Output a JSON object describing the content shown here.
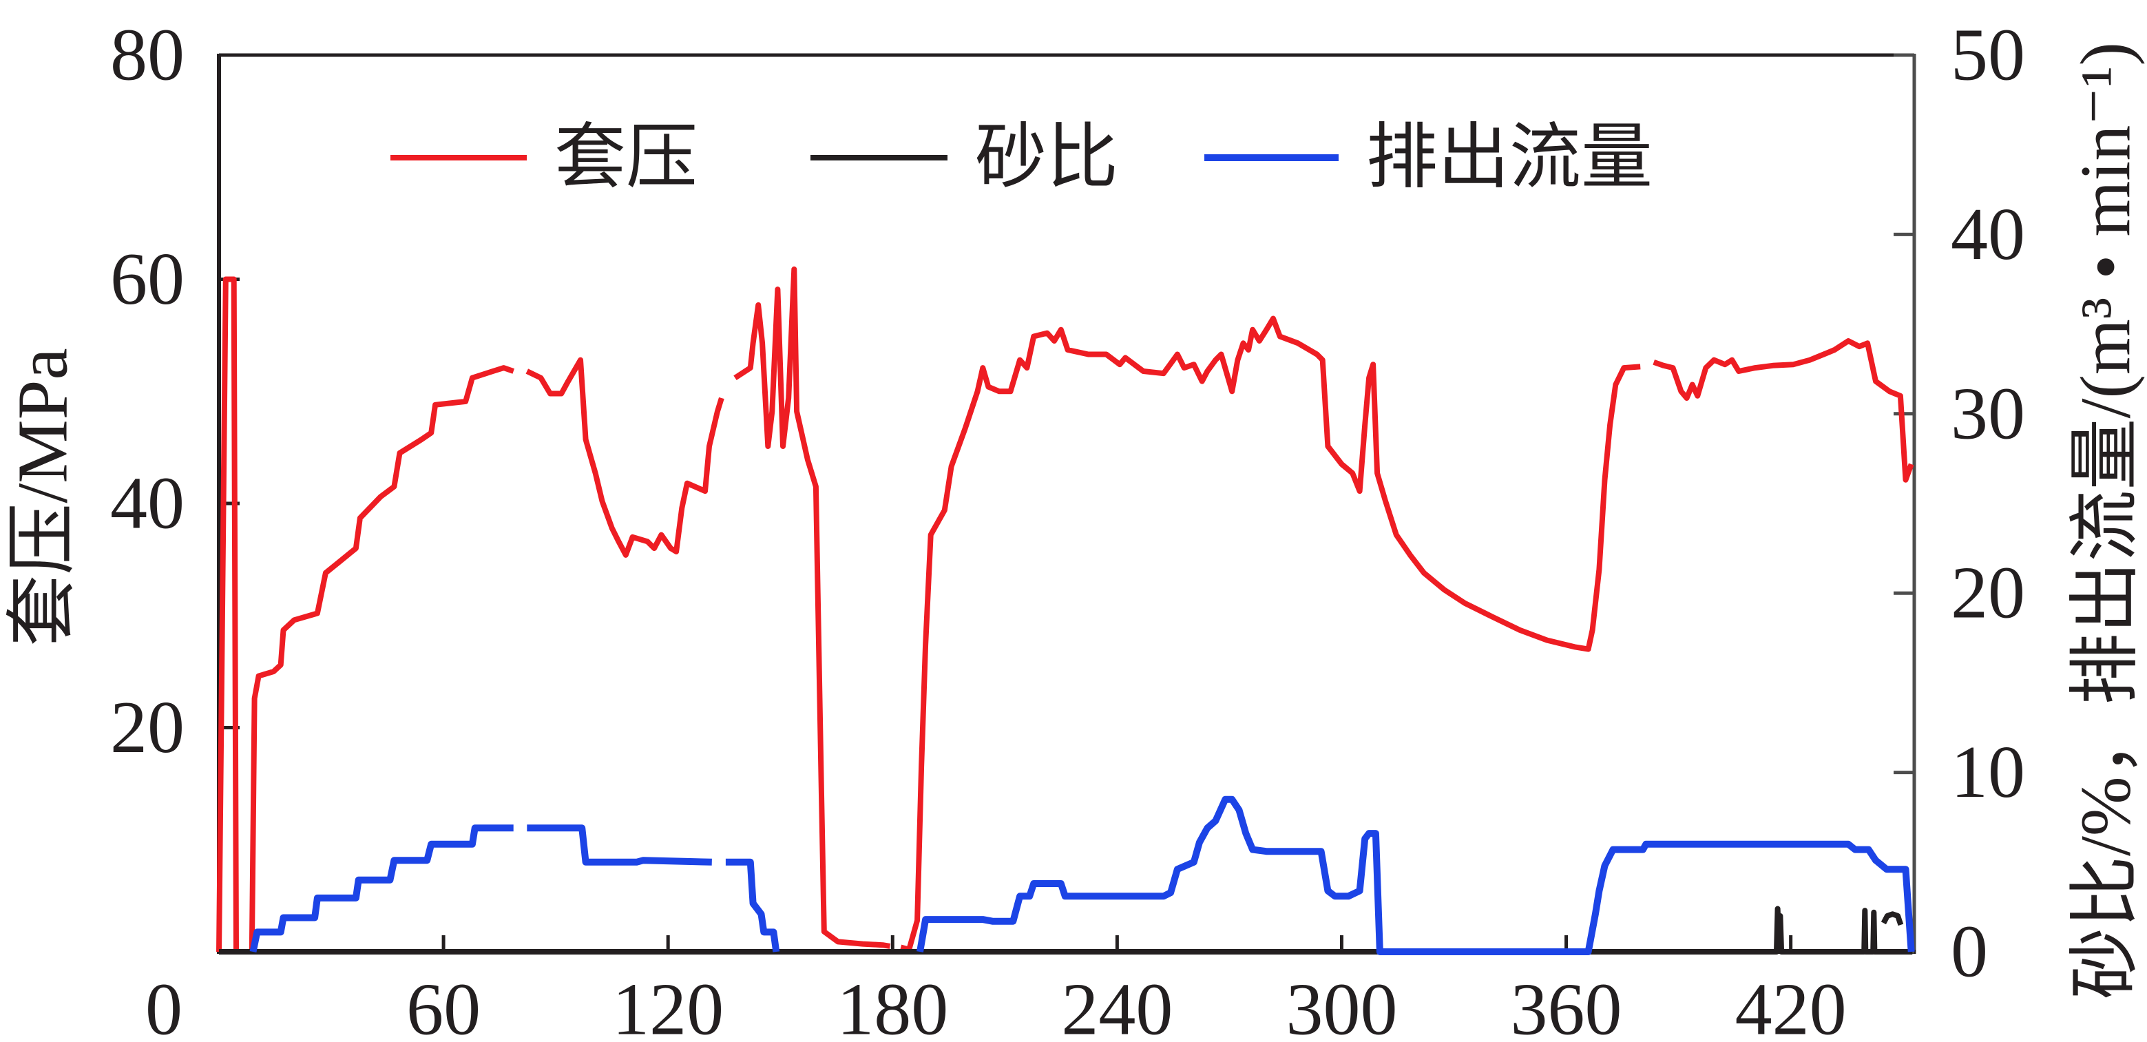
{
  "chart_data": {
    "type": "line",
    "grid": false,
    "legend": "top",
    "x": {
      "range": [
        0,
        453
      ],
      "ticks": [
        0,
        60,
        120,
        180,
        240,
        300,
        360,
        420
      ]
    },
    "y_left": {
      "label": "套压/MPa",
      "range": [
        0,
        80
      ],
      "ticks": [
        20,
        40,
        60,
        80
      ]
    },
    "y_right": {
      "label": "砂比/%，排出流量/(m³ • min⁻¹)",
      "range": [
        0,
        50
      ],
      "ticks": [
        0,
        10,
        20,
        30,
        40,
        50
      ]
    },
    "series": [
      {
        "name": "套压",
        "color": "#ee1d23",
        "y_axis": "left",
        "points": [
          [
            0,
            0
          ],
          [
            1.8,
            60
          ],
          [
            4.0,
            60
          ],
          [
            4.6,
            0
          ],
          [
            8.8,
            0
          ],
          [
            9.5,
            22.6
          ],
          [
            10.6,
            24.6
          ],
          [
            14.6,
            25.0
          ],
          [
            16.5,
            25.6
          ],
          [
            17.2,
            28.7
          ],
          [
            20.1,
            29.6
          ],
          [
            26.3,
            30.2
          ],
          [
            28.5,
            33.8
          ],
          [
            32.2,
            34.8
          ],
          [
            36.6,
            36.0
          ],
          [
            37.7,
            38.7
          ],
          [
            43.2,
            40.6
          ],
          [
            46.8,
            41.5
          ],
          [
            48.3,
            44.5
          ],
          [
            54.1,
            45.7
          ],
          [
            56.7,
            46.3
          ],
          [
            57.8,
            48.8
          ],
          [
            65.9,
            49.1
          ],
          [
            67.7,
            51.2
          ],
          [
            73.2,
            51.8
          ],
          [
            76.1,
            52.1
          ],
          [
            78.7,
            51.8
          ],
          null,
          [
            82.3,
            51.8
          ],
          [
            86.0,
            51.2
          ],
          [
            88.5,
            49.8
          ],
          [
            91.5,
            49.8
          ],
          [
            93.3,
            50.9
          ],
          [
            96.6,
            52.8
          ],
          [
            98.0,
            45.7
          ],
          [
            100.6,
            42.7
          ],
          [
            102.4,
            40.2
          ],
          [
            105.0,
            37.8
          ],
          [
            106.8,
            36.6
          ],
          [
            108.7,
            35.4
          ],
          [
            110.5,
            37.0
          ],
          [
            114.5,
            36.6
          ],
          [
            116.3,
            36.0
          ],
          [
            118.2,
            37.2
          ],
          [
            120.7,
            36.0
          ],
          [
            122.2,
            35.7
          ],
          [
            123.7,
            39.6
          ],
          [
            125.1,
            41.8
          ],
          [
            129.9,
            41.1
          ],
          [
            131.0,
            45.1
          ],
          [
            133.2,
            48.2
          ],
          [
            134.3,
            49.4
          ],
          null,
          [
            137.9,
            51.2
          ],
          [
            142.0,
            52.1
          ],
          [
            142.7,
            54.3
          ],
          [
            144.1,
            57.7
          ],
          [
            145.2,
            54.3
          ],
          [
            146.7,
            45.1
          ],
          [
            147.8,
            48.2
          ],
          [
            149.3,
            59.1
          ],
          [
            150.7,
            45.1
          ],
          [
            152.2,
            49.4
          ],
          [
            153.7,
            60.9
          ],
          [
            154.4,
            48.2
          ],
          [
            157.3,
            43.9
          ],
          [
            159.5,
            41.5
          ],
          [
            161.0,
            14.0
          ],
          [
            161.7,
            1.8
          ],
          [
            165.4,
            0.9
          ],
          [
            172.0,
            0.7
          ],
          [
            177.4,
            0.6
          ],
          [
            179.3,
            0.5
          ],
          null,
          [
            182.2,
            0.4
          ],
          [
            184.4,
            0.2
          ],
          [
            186.6,
            2.8
          ],
          [
            187.7,
            16.5
          ],
          [
            188.8,
            27.4
          ],
          [
            190.2,
            37.2
          ],
          [
            193.9,
            39.4
          ],
          [
            195.7,
            43.3
          ],
          [
            199.4,
            46.7
          ],
          [
            202.7,
            50.0
          ],
          [
            204.1,
            52.1
          ],
          [
            205.6,
            50.4
          ],
          [
            208.5,
            50.0
          ],
          [
            211.5,
            50.0
          ],
          [
            214.0,
            52.8
          ],
          [
            215.9,
            52.1
          ],
          [
            217.7,
            54.9
          ],
          [
            221.3,
            55.2
          ],
          [
            223.2,
            54.5
          ],
          [
            225.0,
            55.5
          ],
          [
            226.8,
            53.7
          ],
          [
            232.3,
            53.3
          ],
          [
            237.1,
            53.3
          ],
          [
            240.7,
            52.4
          ],
          [
            242.2,
            53.0
          ],
          [
            247.0,
            51.8
          ],
          [
            252.4,
            51.6
          ],
          [
            254.6,
            52.6
          ],
          [
            256.1,
            53.3
          ],
          [
            257.9,
            52.1
          ],
          [
            260.5,
            52.4
          ],
          [
            262.7,
            50.9
          ],
          [
            264.1,
            51.8
          ],
          [
            266.3,
            52.8
          ],
          [
            267.8,
            53.3
          ],
          [
            269.3,
            51.6
          ],
          [
            270.7,
            50.0
          ],
          [
            272.2,
            52.8
          ],
          [
            273.7,
            54.3
          ],
          [
            275.1,
            53.7
          ],
          [
            276.2,
            55.5
          ],
          [
            278.0,
            54.5
          ],
          [
            279.9,
            55.5
          ],
          [
            281.7,
            56.5
          ],
          [
            283.5,
            54.9
          ],
          [
            288.3,
            54.3
          ],
          [
            293.4,
            53.3
          ],
          [
            294.9,
            52.8
          ],
          [
            296.3,
            45.1
          ],
          [
            300.0,
            43.5
          ],
          [
            302.9,
            42.7
          ],
          [
            304.8,
            41.1
          ],
          [
            306.2,
            47.0
          ],
          [
            307.3,
            51.2
          ],
          [
            308.4,
            52.4
          ],
          [
            309.5,
            42.7
          ],
          [
            311.7,
            40.2
          ],
          [
            314.6,
            37.2
          ],
          [
            318.3,
            35.4
          ],
          [
            322.0,
            33.8
          ],
          [
            327.4,
            32.3
          ],
          [
            332.9,
            31.1
          ],
          [
            340.2,
            29.9
          ],
          [
            347.6,
            28.7
          ],
          [
            354.9,
            27.8
          ],
          [
            362.2,
            27.2
          ],
          [
            365.9,
            27.0
          ],
          [
            367.0,
            28.7
          ],
          [
            368.8,
            34.1
          ],
          [
            370.3,
            42.1
          ],
          [
            371.7,
            47.0
          ],
          [
            373.2,
            50.6
          ],
          [
            375.4,
            52.1
          ],
          [
            379.8,
            52.2
          ],
          null,
          [
            383.4,
            52.6
          ],
          [
            386.0,
            52.3
          ],
          [
            388.5,
            52.1
          ],
          [
            390.7,
            50.0
          ],
          [
            392.2,
            49.4
          ],
          [
            393.7,
            50.6
          ],
          [
            395.1,
            49.6
          ],
          [
            397.3,
            52.1
          ],
          [
            399.5,
            52.8
          ],
          [
            402.4,
            52.4
          ],
          [
            404.3,
            52.8
          ],
          [
            406.1,
            51.8
          ],
          [
            410.5,
            52.1
          ],
          [
            415.2,
            52.3
          ],
          [
            420.7,
            52.4
          ],
          [
            425.1,
            52.8
          ],
          [
            428.8,
            53.3
          ],
          [
            431.7,
            53.7
          ],
          [
            435.4,
            54.5
          ],
          [
            438.3,
            54.0
          ],
          [
            440.5,
            54.3
          ],
          [
            442.7,
            50.9
          ],
          [
            446.4,
            50.0
          ],
          [
            449.3,
            49.6
          ],
          [
            450.7,
            42.1
          ],
          [
            452.2,
            43.5
          ]
        ]
      },
      {
        "name": "砂比",
        "color": "#231f20",
        "y_axis": "right",
        "points": [
          [
            0,
            0
          ],
          [
            416.2,
            0
          ],
          [
            416.5,
            2.4
          ],
          [
            416.9,
            0.4
          ],
          [
            417.2,
            2.0
          ],
          [
            417.5,
            0
          ],
          [
            439.6,
            0
          ],
          [
            439.8,
            2.3
          ],
          [
            440.0,
            0
          ],
          [
            442.0,
            0
          ],
          [
            442.2,
            2.2
          ],
          [
            442.4,
            0
          ],
          [
            452.5,
            0
          ],
          null,
          [
            444.8,
            1.6
          ],
          [
            445.8,
            2.0
          ],
          [
            447.2,
            2.1
          ],
          [
            448.6,
            2.0
          ],
          [
            449.4,
            1.5
          ]
        ]
      },
      {
        "name": "排出流量",
        "color": "#1c44e6",
        "y_axis": "right",
        "points": [
          [
            9.1,
            0
          ],
          [
            10.2,
            1.1
          ],
          [
            16.5,
            1.1
          ],
          [
            17.2,
            1.9
          ],
          [
            25.6,
            1.9
          ],
          [
            26.3,
            3.0
          ],
          [
            36.6,
            3.0
          ],
          [
            37.3,
            4.0
          ],
          [
            45.7,
            4.0
          ],
          [
            46.8,
            5.1
          ],
          [
            55.6,
            5.1
          ],
          [
            56.7,
            6.0
          ],
          [
            67.7,
            6.0
          ],
          [
            68.4,
            6.9
          ],
          [
            78.7,
            6.9
          ],
          null,
          [
            82.3,
            6.9
          ],
          [
            97.0,
            6.9
          ],
          [
            98.0,
            5.0
          ],
          [
            111.6,
            5.0
          ],
          [
            113.4,
            5.1
          ],
          [
            131.7,
            5.0
          ],
          null,
          [
            135.4,
            5.0
          ],
          [
            140.9,
            5.0
          ],
          [
            142.0,
            5.0
          ],
          [
            142.7,
            2.7
          ],
          [
            144.9,
            2.1
          ],
          [
            145.6,
            1.1
          ],
          [
            148.2,
            1.1
          ],
          [
            148.9,
            0
          ],
          null,
          [
            187.3,
            0
          ],
          [
            188.8,
            1.8
          ],
          [
            204.1,
            1.8
          ],
          [
            206.7,
            1.7
          ],
          [
            212.2,
            1.7
          ],
          [
            214.0,
            3.1
          ],
          [
            216.6,
            3.1
          ],
          [
            217.7,
            3.8
          ],
          [
            225.0,
            3.8
          ],
          [
            226.1,
            3.1
          ],
          [
            241.5,
            3.1
          ],
          [
            252.4,
            3.1
          ],
          [
            254.3,
            3.3
          ],
          [
            256.1,
            4.6
          ],
          [
            260.5,
            5.0
          ],
          [
            262.0,
            6.1
          ],
          [
            264.1,
            6.9
          ],
          [
            266.3,
            7.3
          ],
          [
            268.9,
            8.5
          ],
          [
            270.7,
            8.5
          ],
          [
            272.6,
            7.9
          ],
          [
            274.4,
            6.6
          ],
          [
            276.2,
            5.7
          ],
          [
            279.9,
            5.6
          ],
          [
            294.5,
            5.6
          ],
          [
            296.3,
            3.4
          ],
          [
            298.2,
            3.1
          ],
          [
            301.8,
            3.1
          ],
          [
            304.8,
            3.4
          ],
          [
            306.2,
            6.3
          ],
          [
            307.3,
            6.6
          ],
          [
            309.1,
            6.6
          ],
          [
            310.2,
            0
          ],
          [
            365.9,
            0
          ],
          [
            367.8,
            2.1
          ],
          [
            368.8,
            3.4
          ],
          [
            370.3,
            4.8
          ],
          [
            372.5,
            5.7
          ],
          [
            380.5,
            5.7
          ],
          [
            381.3,
            6.0
          ],
          [
            435.4,
            6.0
          ],
          [
            437.2,
            5.7
          ],
          [
            440.8,
            5.7
          ],
          [
            442.7,
            5.1
          ],
          [
            445.6,
            4.6
          ],
          [
            450.7,
            4.6
          ],
          [
            452.2,
            0
          ]
        ]
      }
    ]
  }
}
